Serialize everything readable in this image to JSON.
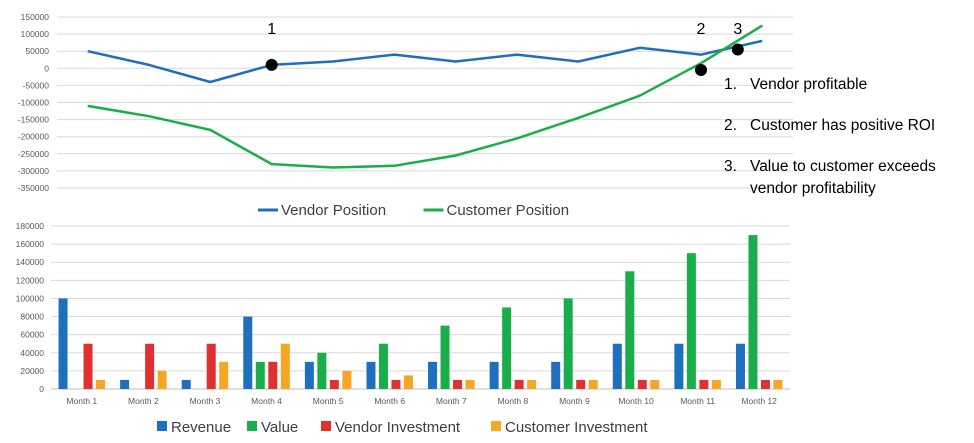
{
  "chart_data": [
    {
      "type": "line",
      "categories": [
        "Month 1",
        "Month 2",
        "Month 3",
        "Month 4",
        "Month 5",
        "Month 6",
        "Month 7",
        "Month 8",
        "Month 9",
        "Month 10",
        "Month 11",
        "Month 12"
      ],
      "series": [
        {
          "name": "Vendor Position",
          "color": "#1f6fbf",
          "values": [
            50000,
            10000,
            -40000,
            10000,
            20000,
            40000,
            20000,
            40000,
            20000,
            60000,
            40000,
            80000
          ]
        },
        {
          "name": "Customer Position",
          "color": "#1aae4a",
          "values": [
            -110000,
            -140000,
            -180000,
            -280000,
            -290000,
            -285000,
            -255000,
            -205000,
            -145000,
            -80000,
            15000,
            125000
          ]
        }
      ],
      "ylim": [
        -350000,
        150000
      ],
      "yticks": [
        "150000",
        "100000",
        "50000",
        "0",
        "-50000",
        "-100000",
        "-150000",
        "-200000",
        "-250000",
        "-300000",
        "-350000"
      ],
      "grid": true,
      "legend": "bottom",
      "markers": [
        {
          "label": "1",
          "month_index": 3,
          "value": 10000
        },
        {
          "label": "2",
          "month_index": 10,
          "value": -5000
        },
        {
          "label": "3",
          "month_index": 10.6,
          "value": 55000
        }
      ]
    },
    {
      "type": "bar",
      "categories": [
        "Month 1",
        "Month 2",
        "Month 3",
        "Month 4",
        "Month 5",
        "Month 6",
        "Month 7",
        "Month 8",
        "Month 9",
        "Month 10",
        "Month 11",
        "Month 12"
      ],
      "series": [
        {
          "name": "Revenue",
          "color": "#1f6fbf",
          "values": [
            100000,
            10000,
            10000,
            80000,
            30000,
            30000,
            30000,
            30000,
            30000,
            50000,
            50000,
            50000
          ]
        },
        {
          "name": "Value",
          "color": "#1aae4a",
          "values": [
            0,
            0,
            0,
            30000,
            40000,
            50000,
            70000,
            90000,
            100000,
            130000,
            150000,
            170000
          ]
        },
        {
          "name": "Vendor Investment",
          "color": "#e03030",
          "values": [
            50000,
            50000,
            50000,
            30000,
            10000,
            10000,
            10000,
            10000,
            10000,
            10000,
            10000,
            10000
          ]
        },
        {
          "name": "Customer Investment",
          "color": "#f5a623",
          "values": [
            10000,
            20000,
            30000,
            50000,
            20000,
            15000,
            10000,
            10000,
            10000,
            10000,
            10000,
            10000
          ]
        }
      ],
      "ylim": [
        0,
        180000
      ],
      "yticks": [
        "180000",
        "160000",
        "140000",
        "120000",
        "100000",
        "80000",
        "60000",
        "40000",
        "20000",
        "0"
      ],
      "grid": true,
      "legend": "bottom"
    }
  ],
  "notes": [
    {
      "num": "1.",
      "text": "Vendor profitable"
    },
    {
      "num": "2.",
      "text": "Customer has positive ROI"
    },
    {
      "num": "3.",
      "text": "Value to customer exceeds vendor profitability"
    }
  ]
}
